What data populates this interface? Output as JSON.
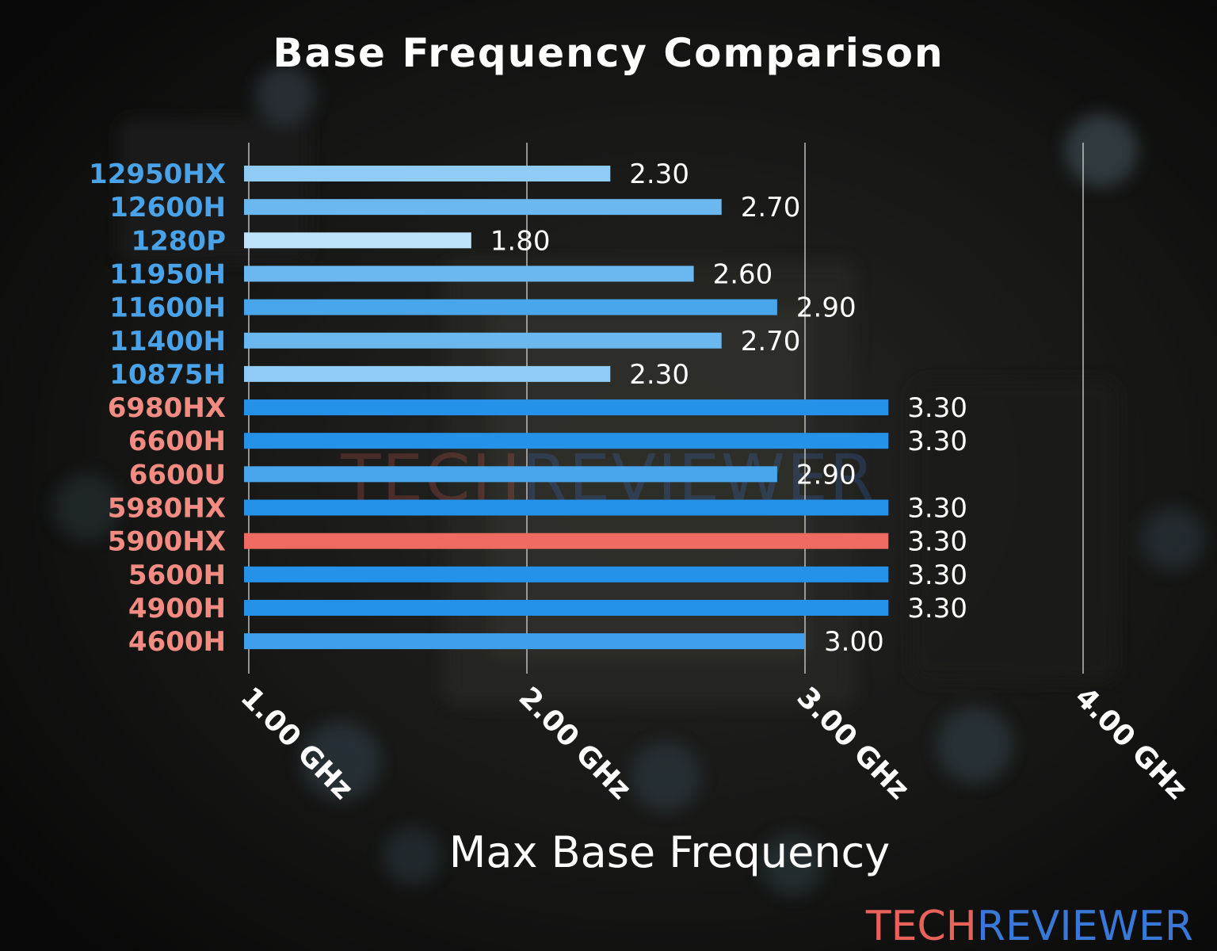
{
  "chart_data": {
    "type": "bar",
    "orientation": "horizontal",
    "title": "Base Frequency Comparison",
    "xlabel": "Max Base Frequency",
    "ylabel": "",
    "xlim": [
      1.0,
      4.0
    ],
    "x_ticks": [
      1.0,
      2.0,
      3.0,
      4.0
    ],
    "x_tick_labels": [
      "1.00 GHz",
      "2.00 GHz",
      "3.00 GHz",
      "4.00 GHz"
    ],
    "grid": "vertical",
    "value_label_format": "2 decimals",
    "categories": [
      "12950HX",
      "12600H",
      "1280P",
      "11950H",
      "11600H",
      "11400H",
      "10875H",
      "6980HX",
      "6600H",
      "6600U",
      "5980HX",
      "5900HX",
      "5600H",
      "4900H",
      "4600H"
    ],
    "values": [
      2.3,
      2.7,
      1.8,
      2.6,
      2.9,
      2.7,
      2.3,
      3.3,
      3.3,
      2.9,
      3.3,
      3.3,
      3.3,
      3.3,
      3.0
    ],
    "category_label_colors": [
      "#4aa3e8",
      "#4aa3e8",
      "#4aa3e8",
      "#4aa3e8",
      "#4aa3e8",
      "#4aa3e8",
      "#4aa3e8",
      "#f28b82",
      "#f28b82",
      "#f28b82",
      "#f28b82",
      "#f28b82",
      "#f28b82",
      "#f28b82",
      "#f28b82"
    ],
    "bar_colors": [
      "#8fcbf5",
      "#6bb8f0",
      "#bfe2fb",
      "#6bb8f0",
      "#4aa6ec",
      "#6bb8f0",
      "#8fcbf5",
      "#2592ea",
      "#2592ea",
      "#4aa6ec",
      "#2592ea",
      "#ef6b62",
      "#2592ea",
      "#2592ea",
      "#3f9fec"
    ],
    "highlight": "5900HX"
  },
  "watermark": {
    "logo_part1": "TECH",
    "logo_part2": "REVIEWER",
    "part1_color": "#e8625a",
    "part2_color": "#3a78d8"
  },
  "colors": {
    "title": "#ffffff",
    "value_label": "#ffffff",
    "grid": "#d9d9d9"
  }
}
